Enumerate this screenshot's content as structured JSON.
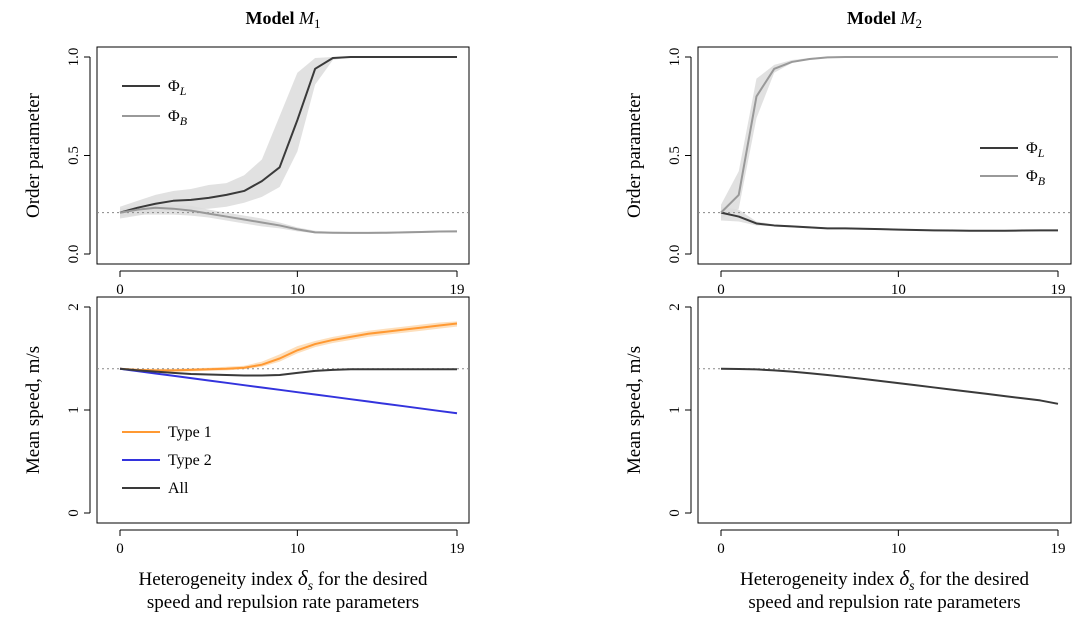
{
  "chart_data": [
    {
      "id": "m1-order",
      "type": "line",
      "title_bold": "Model",
      "title_var": "M",
      "title_sub": "1",
      "ylabel": "Order parameter",
      "xlabel": "",
      "xlim": [
        0,
        19
      ],
      "ylim": [
        0,
        1
      ],
      "x_ticks": [
        "0",
        "10",
        "19"
      ],
      "y_ticks": [
        "0.0",
        "0.5",
        "1.0"
      ],
      "reference_line": 0.21,
      "legend": {
        "position": "top-left"
      },
      "x": [
        0,
        1,
        2,
        3,
        4,
        5,
        6,
        7,
        8,
        9,
        10,
        11,
        12,
        13,
        14,
        15,
        16,
        17,
        18,
        19
      ],
      "series": [
        {
          "name": "Φ",
          "sub": "L",
          "color": "#3a3a3a",
          "values": [
            0.21,
            0.235,
            0.255,
            0.27,
            0.275,
            0.285,
            0.3,
            0.32,
            0.37,
            0.44,
            0.68,
            0.94,
            0.995,
            1,
            1,
            1,
            1,
            1,
            1,
            1
          ],
          "lower": [
            0.18,
            0.195,
            0.21,
            0.22,
            0.225,
            0.23,
            0.24,
            0.26,
            0.29,
            0.34,
            0.52,
            0.86,
            0.985,
            1,
            1,
            1,
            1,
            1,
            1,
            1
          ],
          "upper": [
            0.24,
            0.27,
            0.3,
            0.32,
            0.33,
            0.35,
            0.36,
            0.4,
            0.48,
            0.7,
            0.92,
            0.995,
            1,
            1,
            1,
            1,
            1,
            1,
            1,
            1
          ]
        },
        {
          "name": "Φ",
          "sub": "B",
          "color": "#999999",
          "values": [
            0.21,
            0.225,
            0.235,
            0.23,
            0.22,
            0.205,
            0.19,
            0.175,
            0.16,
            0.145,
            0.125,
            0.11,
            0.108,
            0.107,
            0.107,
            0.108,
            0.11,
            0.112,
            0.114,
            0.115
          ],
          "lower": [
            0.19,
            0.2,
            0.2,
            0.2,
            0.195,
            0.185,
            0.17,
            0.155,
            0.14,
            0.13,
            0.115,
            0.105,
            0.103,
            0.102,
            0.102,
            0.103,
            0.105,
            0.107,
            0.109,
            0.11
          ],
          "upper": [
            0.23,
            0.24,
            0.25,
            0.25,
            0.245,
            0.225,
            0.21,
            0.195,
            0.18,
            0.16,
            0.135,
            0.118,
            0.113,
            0.112,
            0.112,
            0.113,
            0.115,
            0.117,
            0.119,
            0.12
          ]
        }
      ]
    },
    {
      "id": "m2-order",
      "type": "line",
      "title_bold": "Model",
      "title_var": "M",
      "title_sub": "2",
      "ylabel": "Order parameter",
      "xlabel": "",
      "xlim": [
        0,
        19
      ],
      "ylim": [
        0,
        1
      ],
      "x_ticks": [
        "0",
        "10",
        "19"
      ],
      "y_ticks": [
        "0.0",
        "0.5",
        "1.0"
      ],
      "reference_line": 0.21,
      "legend": {
        "position": "right"
      },
      "x": [
        0,
        1,
        2,
        3,
        4,
        5,
        6,
        7,
        8,
        9,
        10,
        11,
        12,
        13,
        14,
        15,
        16,
        17,
        18,
        19
      ],
      "series": [
        {
          "name": "Φ",
          "sub": "L",
          "color": "#3a3a3a",
          "values": [
            0.21,
            0.19,
            0.155,
            0.145,
            0.14,
            0.135,
            0.13,
            0.13,
            0.128,
            0.126,
            0.124,
            0.122,
            0.12,
            0.119,
            0.118,
            0.118,
            0.118,
            0.119,
            0.12,
            0.12
          ],
          "lower": [
            0.17,
            0.165,
            0.145,
            0.14,
            0.135,
            0.13,
            0.126,
            0.126,
            0.124,
            0.122,
            0.12,
            0.118,
            0.116,
            0.115,
            0.114,
            0.114,
            0.114,
            0.115,
            0.116,
            0.116
          ],
          "upper": [
            0.24,
            0.225,
            0.165,
            0.15,
            0.145,
            0.14,
            0.134,
            0.134,
            0.132,
            0.13,
            0.128,
            0.126,
            0.124,
            0.123,
            0.122,
            0.122,
            0.122,
            0.123,
            0.124,
            0.124
          ]
        },
        {
          "name": "Φ",
          "sub": "B",
          "color": "#999999",
          "values": [
            0.21,
            0.3,
            0.8,
            0.94,
            0.975,
            0.99,
            0.998,
            1,
            1,
            1,
            1,
            1,
            1,
            1,
            1,
            1,
            1,
            1,
            1,
            1
          ],
          "lower": [
            0.18,
            0.23,
            0.69,
            0.92,
            0.97,
            0.988,
            0.997,
            1,
            1,
            1,
            1,
            1,
            1,
            1,
            1,
            1,
            1,
            1,
            1,
            1
          ],
          "upper": [
            0.25,
            0.42,
            0.89,
            0.96,
            0.985,
            0.995,
            1,
            1,
            1,
            1,
            1,
            1,
            1,
            1,
            1,
            1,
            1,
            1,
            1,
            1
          ]
        }
      ]
    },
    {
      "id": "m1-speed",
      "type": "line",
      "ylabel": "Mean speed, m/s",
      "xlabel": [
        "Heterogeneity index",
        "for the desired",
        "speed and repulsion rate parameters"
      ],
      "xlabel_symbol": "δ",
      "xlabel_symbol_sub": "s",
      "xlim": [
        0,
        19
      ],
      "ylim": [
        0,
        2
      ],
      "x_ticks": [
        "0",
        "10",
        "19"
      ],
      "y_ticks": [
        "0",
        "1",
        "2"
      ],
      "reference_line": 1.4,
      "legend": {
        "position": "bottom-left"
      },
      "x": [
        0,
        1,
        2,
        3,
        4,
        5,
        6,
        7,
        8,
        9,
        10,
        11,
        12,
        13,
        14,
        15,
        16,
        17,
        18,
        19
      ],
      "series": [
        {
          "name": "Type 1",
          "color": "#ff9933",
          "values": [
            1.4,
            1.39,
            1.385,
            1.385,
            1.39,
            1.395,
            1.4,
            1.41,
            1.44,
            1.5,
            1.58,
            1.64,
            1.68,
            1.71,
            1.74,
            1.76,
            1.78,
            1.8,
            1.82,
            1.84
          ],
          "lower": [
            1.39,
            1.38,
            1.37,
            1.37,
            1.375,
            1.38,
            1.385,
            1.395,
            1.42,
            1.47,
            1.55,
            1.61,
            1.65,
            1.68,
            1.71,
            1.73,
            1.75,
            1.77,
            1.79,
            1.81
          ],
          "upper": [
            1.41,
            1.4,
            1.4,
            1.4,
            1.405,
            1.41,
            1.42,
            1.43,
            1.47,
            1.54,
            1.62,
            1.67,
            1.71,
            1.74,
            1.77,
            1.79,
            1.81,
            1.83,
            1.85,
            1.86
          ]
        },
        {
          "name": "Type 2",
          "color": "#3333dd",
          "values": [
            1.4,
            1.377,
            1.354,
            1.332,
            1.309,
            1.286,
            1.264,
            1.241,
            1.218,
            1.196,
            1.173,
            1.15,
            1.128,
            1.105,
            1.082,
            1.059,
            1.037,
            1.014,
            0.991,
            0.968
          ]
        },
        {
          "name": "All",
          "color": "#3a3a3a",
          "values": [
            1.4,
            1.385,
            1.372,
            1.36,
            1.35,
            1.345,
            1.34,
            1.335,
            1.335,
            1.34,
            1.36,
            1.38,
            1.39,
            1.395,
            1.395,
            1.395,
            1.395,
            1.395,
            1.395,
            1.395
          ],
          "lower": [
            1.395,
            1.38,
            1.365,
            1.352,
            1.342,
            1.337,
            1.332,
            1.327,
            1.327,
            1.332,
            1.352,
            1.372,
            1.382,
            1.387,
            1.387,
            1.387,
            1.387,
            1.387,
            1.387,
            1.387
          ],
          "upper": [
            1.405,
            1.39,
            1.379,
            1.368,
            1.358,
            1.353,
            1.348,
            1.343,
            1.343,
            1.348,
            1.368,
            1.388,
            1.398,
            1.403,
            1.403,
            1.403,
            1.403,
            1.403,
            1.403,
            1.403
          ]
        }
      ]
    },
    {
      "id": "m2-speed",
      "type": "line",
      "ylabel": "Mean speed, m/s",
      "xlabel": [
        "Heterogeneity index",
        "for the desired",
        "speed and repulsion rate parameters"
      ],
      "xlabel_symbol": "δ",
      "xlabel_symbol_sub": "s",
      "xlim": [
        0,
        19
      ],
      "ylim": [
        0,
        2
      ],
      "x_ticks": [
        "0",
        "10",
        "19"
      ],
      "y_ticks": [
        "0",
        "1",
        "2"
      ],
      "reference_line": 1.4,
      "legend": null,
      "x": [
        0,
        1,
        2,
        3,
        4,
        5,
        6,
        7,
        8,
        9,
        10,
        11,
        12,
        13,
        14,
        15,
        16,
        17,
        18,
        19
      ],
      "series": [
        {
          "name": "",
          "color": "#3a3a3a",
          "values": [
            1.4,
            1.398,
            1.394,
            1.385,
            1.372,
            1.357,
            1.34,
            1.322,
            1.302,
            1.282,
            1.261,
            1.24,
            1.219,
            1.198,
            1.177,
            1.156,
            1.135,
            1.114,
            1.093,
            1.06
          ]
        }
      ]
    }
  ],
  "colors": {
    "band": "#dcdcdc",
    "band_orange": "#fdd9b0",
    "ref_line": "#888888"
  }
}
